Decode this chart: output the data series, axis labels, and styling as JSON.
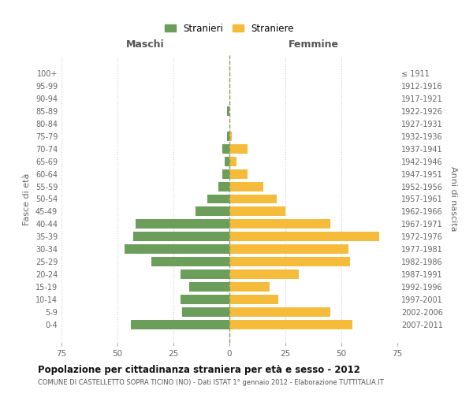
{
  "age_groups": [
    "0-4",
    "5-9",
    "10-14",
    "15-19",
    "20-24",
    "25-29",
    "30-34",
    "35-39",
    "40-44",
    "45-49",
    "50-54",
    "55-59",
    "60-64",
    "65-69",
    "70-74",
    "75-79",
    "80-84",
    "85-89",
    "90-94",
    "95-99",
    "100+"
  ],
  "birth_years": [
    "2007-2011",
    "2002-2006",
    "1997-2001",
    "1992-1996",
    "1987-1991",
    "1982-1986",
    "1977-1981",
    "1972-1976",
    "1967-1971",
    "1962-1966",
    "1957-1961",
    "1952-1956",
    "1947-1951",
    "1942-1946",
    "1937-1941",
    "1932-1936",
    "1927-1931",
    "1922-1926",
    "1917-1921",
    "1912-1916",
    "≤ 1911"
  ],
  "males": [
    44,
    21,
    22,
    18,
    22,
    35,
    47,
    43,
    42,
    15,
    10,
    5,
    3,
    2,
    3,
    1,
    0,
    1,
    0,
    0,
    0
  ],
  "females": [
    55,
    45,
    22,
    18,
    31,
    54,
    53,
    67,
    45,
    25,
    21,
    15,
    8,
    3,
    8,
    1,
    0,
    0,
    0,
    0,
    0
  ],
  "male_color": "#6a9e5a",
  "female_color": "#f5bc3c",
  "background_color": "#ffffff",
  "grid_color": "#cccccc",
  "title": "Popolazione per cittadinanza straniera per età e sesso - 2012",
  "subtitle": "COMUNE DI CASTELLETTO SOPRA TICINO (NO) - Dati ISTAT 1° gennaio 2012 - Elaborazione TUTTITALIA.IT",
  "ylabel_left": "Fasce di età",
  "ylabel_right": "Anni di nascita",
  "xlabel_maschi": "Maschi",
  "xlabel_femmine": "Femmine",
  "legend_stranieri": "Stranieri",
  "legend_straniere": "Straniere",
  "xlim": 75
}
